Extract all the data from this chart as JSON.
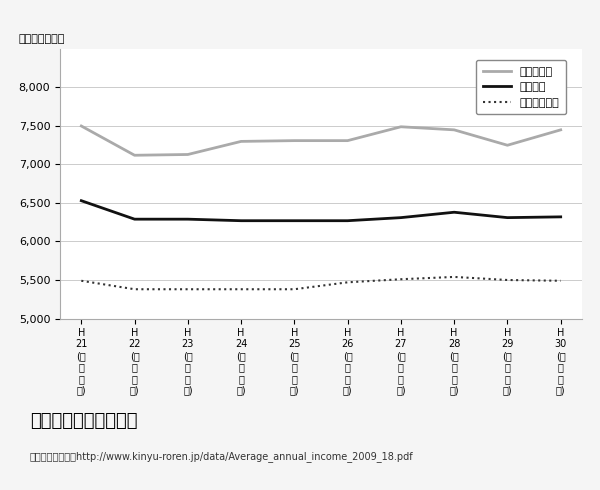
{
  "x_labels": [
    "H\n21\n(２\n０\n０\n９)",
    "H\n22\n(２\n０\n１\n０)",
    "H\n23\n(２\n０\n１\n１)",
    "H\n24\n(２\n０\n１\n２)",
    "H\n25\n(２\n０\n１\n３)",
    "H\n26\n(２\n０\n１\n４)",
    "H\n27\n(２\n０\n１\n５)",
    "H\n28\n(２\n０\n１\n６)",
    "H\n29\n(２\n０\n１\n７)",
    "H\n30\n(２\n０\n１\n８)"
  ],
  "megabank": [
    7500,
    7120,
    7130,
    7300,
    7310,
    7310,
    7490,
    7450,
    7250,
    7450
  ],
  "chiho_ginko": [
    6530,
    6290,
    6290,
    6270,
    6270,
    6270,
    6310,
    6380,
    6310,
    6320
  ],
  "daini_chiho": [
    5490,
    5380,
    5380,
    5380,
    5380,
    5470,
    5510,
    5540,
    5500,
    5490
  ],
  "megabank_color": "#aaaaaa",
  "chiho_color": "#111111",
  "daini_color": "#333333",
  "ylim_min": 5000,
  "ylim_max": 8500,
  "yticks": [
    5000,
    5500,
    6000,
    6500,
    7000,
    7500,
    8000
  ],
  "unit_label": "（単位：千円）",
  "title": "銀行員の平均年収推移",
  "source": "出典：金融労連　http://www.kinyu-roren.jp/data/Average_annual_income_2009_18.pdf",
  "legend_megabank": "メガバンク",
  "legend_chiho": "地方銀行",
  "legend_daini": "第二地方銀行",
  "bg_color": "#f5f5f5",
  "plot_bg_color": "#ffffff"
}
